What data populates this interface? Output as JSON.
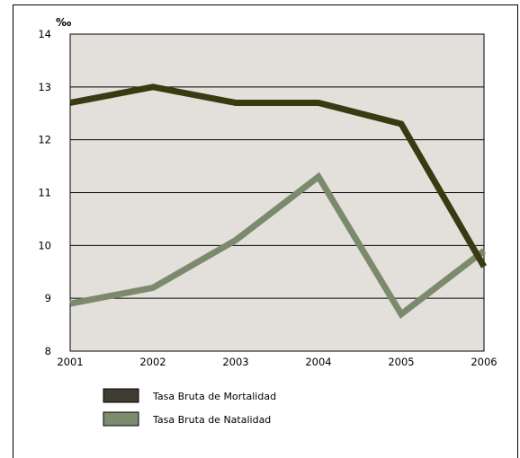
{
  "chart_data": {
    "type": "line",
    "title": "",
    "xlabel": "",
    "ylabel": "‰",
    "x": [
      "2001",
      "2002",
      "2003",
      "2004",
      "2005",
      "2006"
    ],
    "ylim": [
      8,
      14
    ],
    "yticks": [
      "8",
      "9",
      "10",
      "11",
      "12",
      "13",
      "14"
    ],
    "grid": "horizontal",
    "legend_position": "bottom-left",
    "background_color": "#e3dfdb",
    "series": [
      {
        "name": "Tasa Bruta de Mortalidad",
        "color": "#3a3a12",
        "legend_color": "#3f3c33",
        "values": [
          12.7,
          13.0,
          12.7,
          12.7,
          12.3,
          9.6
        ]
      },
      {
        "name": "Tasa Bruta de Natalidad",
        "color": "#7b8a6c",
        "legend_color": "#7d8b6e",
        "values": [
          8.9,
          9.2,
          10.1,
          11.3,
          8.7,
          9.9
        ]
      }
    ]
  }
}
